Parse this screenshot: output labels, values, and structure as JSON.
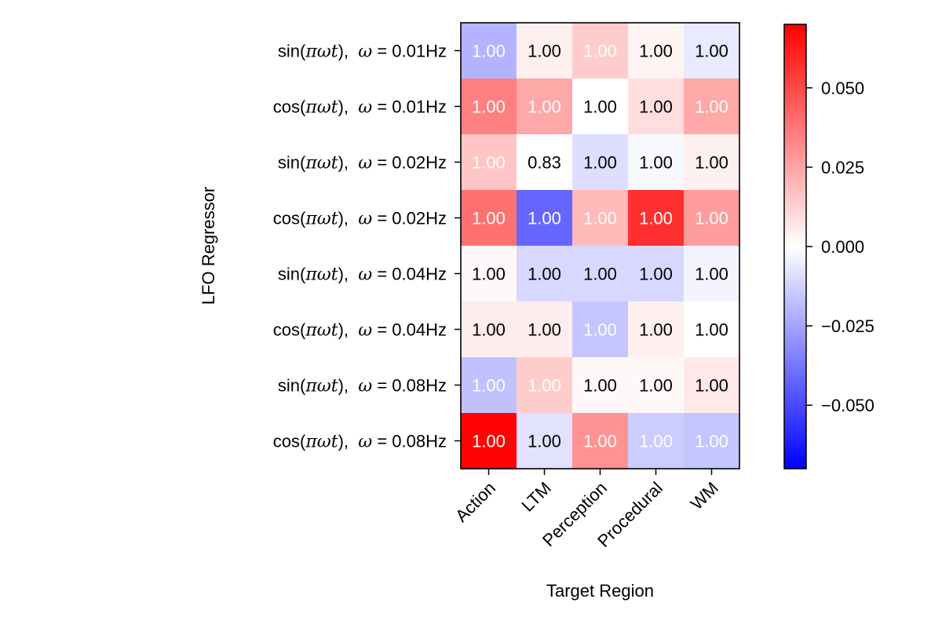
{
  "chart_data": {
    "type": "heatmap",
    "xlabel": "Target Region",
    "ylabel": "LFO Regressor",
    "x_categories": [
      "Action",
      "LTM",
      "Perception",
      "Procedural",
      "WM"
    ],
    "y_categories": [
      {
        "fn": "sin",
        "freq": "0.01Hz"
      },
      {
        "fn": "cos",
        "freq": "0.01Hz"
      },
      {
        "fn": "sin",
        "freq": "0.02Hz"
      },
      {
        "fn": "cos",
        "freq": "0.02Hz"
      },
      {
        "fn": "sin",
        "freq": "0.04Hz"
      },
      {
        "fn": "cos",
        "freq": "0.04Hz"
      },
      {
        "fn": "sin",
        "freq": "0.08Hz"
      },
      {
        "fn": "cos",
        "freq": "0.08Hz"
      }
    ],
    "values": [
      [
        -0.021,
        0.004,
        0.014,
        0.003,
        -0.006
      ],
      [
        0.035,
        0.024,
        0.0,
        0.009,
        0.024
      ],
      [
        0.016,
        0.0,
        -0.009,
        -0.002,
        0.004
      ],
      [
        0.039,
        -0.042,
        0.019,
        0.057,
        0.027
      ],
      [
        0.002,
        -0.011,
        -0.011,
        -0.011,
        -0.003
      ],
      [
        0.005,
        0.005,
        -0.016,
        0.004,
        0.0
      ],
      [
        -0.017,
        0.014,
        0.002,
        0.002,
        0.006
      ],
      [
        0.069,
        -0.008,
        0.03,
        -0.014,
        -0.016
      ]
    ],
    "cell_labels": [
      [
        "1.00",
        "1.00",
        "1.00",
        "1.00",
        "1.00"
      ],
      [
        "1.00",
        "1.00",
        "1.00",
        "1.00",
        "1.00"
      ],
      [
        "1.00",
        "0.83",
        "1.00",
        "1.00",
        "1.00"
      ],
      [
        "1.00",
        "1.00",
        "1.00",
        "1.00",
        "1.00"
      ],
      [
        "1.00",
        "1.00",
        "1.00",
        "1.00",
        "1.00"
      ],
      [
        "1.00",
        "1.00",
        "1.00",
        "1.00",
        "1.00"
      ],
      [
        "1.00",
        "1.00",
        "1.00",
        "1.00",
        "1.00"
      ],
      [
        "1.00",
        "1.00",
        "1.00",
        "1.00",
        "1.00"
      ]
    ],
    "label_colors": [
      [
        "white",
        "black",
        "white",
        "black",
        "black"
      ],
      [
        "white",
        "white",
        "black",
        "black",
        "white"
      ],
      [
        "white",
        "black",
        "black",
        "black",
        "black"
      ],
      [
        "white",
        "white",
        "white",
        "white",
        "white"
      ],
      [
        "black",
        "black",
        "black",
        "black",
        "black"
      ],
      [
        "black",
        "black",
        "white",
        "black",
        "black"
      ],
      [
        "white",
        "white",
        "black",
        "black",
        "black"
      ],
      [
        "white",
        "black",
        "white",
        "white",
        "white"
      ]
    ],
    "colormap": "bwr",
    "vmin": -0.07,
    "vmax": 0.07,
    "colorbar_ticks": [
      0.05,
      0.025,
      0.0,
      -0.025,
      -0.05
    ],
    "colorbar_tick_labels": [
      "0.050",
      "0.025",
      "0.000",
      "−0.025",
      "−0.050"
    ],
    "colors": {
      "neg": "#0000ff",
      "zero": "#ffffff",
      "pos": "#ff0000"
    }
  }
}
